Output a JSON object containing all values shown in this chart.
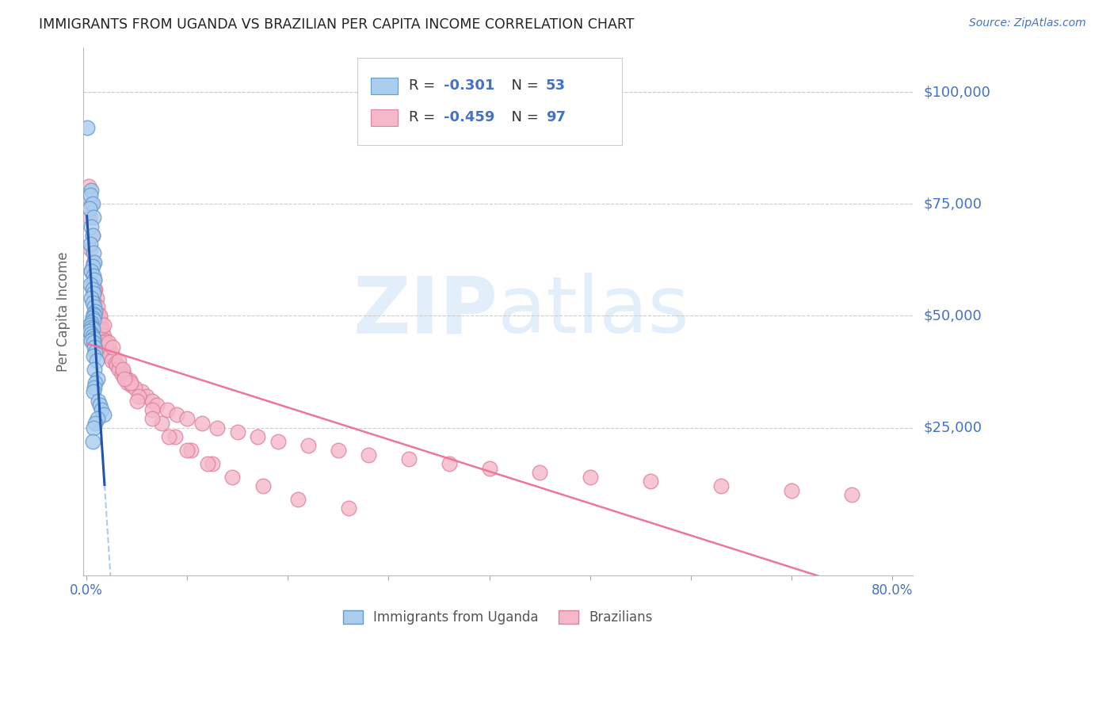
{
  "title": "IMMIGRANTS FROM UGANDA VS BRAZILIAN PER CAPITA INCOME CORRELATION CHART",
  "source": "Source: ZipAtlas.com",
  "ylabel": "Per Capita Income",
  "ytick_vals": [
    0,
    25000,
    50000,
    75000,
    100000
  ],
  "ytick_right_vals": [
    25000,
    50000,
    75000,
    100000
  ],
  "ytick_right_labels": [
    "$25,000",
    "$50,000",
    "$75,000",
    "$100,000"
  ],
  "xlim": [
    -0.003,
    0.82
  ],
  "ylim": [
    -8000,
    110000
  ],
  "watermark_zip": "ZIP",
  "watermark_atlas": "atlas",
  "legend_label1": "Immigrants from Uganda",
  "legend_label2": "Brazilians",
  "R1": "-0.301",
  "N1": "53",
  "R2": "-0.459",
  "N2": "97",
  "uganda_color": "#A8CDEF",
  "brazil_color": "#F5B8C8",
  "uganda_edge_color": "#6699CC",
  "brazil_edge_color": "#E080A0",
  "trend_uganda_color": "#2255AA",
  "trend_brazil_color": "#EE7799",
  "trend_dashed_color": "#AACCEE",
  "text_dark": "#333333",
  "text_blue": "#4472C4",
  "grid_color": "#CCCCCC",
  "uganda_scatter_x": [
    0.001,
    0.005,
    0.004,
    0.006,
    0.003,
    0.007,
    0.005,
    0.006,
    0.004,
    0.007,
    0.008,
    0.006,
    0.005,
    0.007,
    0.008,
    0.004,
    0.006,
    0.007,
    0.005,
    0.006,
    0.008,
    0.009,
    0.007,
    0.008,
    0.006,
    0.007,
    0.005,
    0.004,
    0.005,
    0.006,
    0.003,
    0.005,
    0.006,
    0.007,
    0.005,
    0.007,
    0.008,
    0.009,
    0.007,
    0.01,
    0.008,
    0.011,
    0.009,
    0.008,
    0.007,
    0.012,
    0.013,
    0.015,
    0.017,
    0.011,
    0.009,
    0.007,
    0.006
  ],
  "uganda_scatter_y": [
    92000,
    78000,
    77000,
    75000,
    74000,
    72000,
    70000,
    68000,
    66000,
    64000,
    62000,
    61000,
    60000,
    59000,
    58000,
    57000,
    56000,
    55000,
    54000,
    53000,
    52000,
    51000,
    50500,
    50000,
    49500,
    49000,
    48500,
    48000,
    47500,
    47000,
    46500,
    46000,
    45500,
    45000,
    44500,
    44000,
    43000,
    42000,
    41000,
    40000,
    38000,
    36000,
    35000,
    34000,
    33000,
    31000,
    30000,
    29000,
    28000,
    27000,
    26000,
    25000,
    22000
  ],
  "brazil_scatter_x": [
    0.002,
    0.005,
    0.003,
    0.006,
    0.004,
    0.007,
    0.005,
    0.008,
    0.006,
    0.009,
    0.007,
    0.01,
    0.008,
    0.011,
    0.009,
    0.012,
    0.01,
    0.013,
    0.011,
    0.014,
    0.012,
    0.015,
    0.013,
    0.016,
    0.014,
    0.017,
    0.015,
    0.019,
    0.017,
    0.021,
    0.019,
    0.023,
    0.021,
    0.025,
    0.023,
    0.027,
    0.025,
    0.029,
    0.03,
    0.033,
    0.032,
    0.036,
    0.035,
    0.038,
    0.04,
    0.043,
    0.041,
    0.045,
    0.055,
    0.06,
    0.065,
    0.07,
    0.08,
    0.09,
    0.1,
    0.115,
    0.13,
    0.15,
    0.17,
    0.19,
    0.22,
    0.25,
    0.28,
    0.32,
    0.36,
    0.4,
    0.45,
    0.5,
    0.56,
    0.63,
    0.7,
    0.76,
    0.048,
    0.032,
    0.022,
    0.013,
    0.036,
    0.044,
    0.052,
    0.065,
    0.075,
    0.088,
    0.104,
    0.125,
    0.008,
    0.017,
    0.026,
    0.038,
    0.05,
    0.065,
    0.082,
    0.1,
    0.12,
    0.145,
    0.175,
    0.21,
    0.26
  ],
  "brazil_scatter_y": [
    79000,
    75000,
    72000,
    68000,
    65000,
    62000,
    60000,
    58000,
    57000,
    56000,
    55000,
    54000,
    53000,
    52000,
    51000,
    50500,
    50000,
    49500,
    49000,
    48500,
    48000,
    47500,
    47000,
    46500,
    46000,
    45500,
    45000,
    44500,
    44000,
    43500,
    43000,
    42500,
    42000,
    41500,
    41000,
    40500,
    40000,
    39500,
    39000,
    38500,
    38000,
    37500,
    37000,
    36500,
    36000,
    35500,
    35000,
    34500,
    33000,
    32000,
    31000,
    30000,
    29000,
    28000,
    27000,
    26000,
    25000,
    24000,
    23000,
    22000,
    21000,
    20000,
    19000,
    18000,
    17000,
    16000,
    15000,
    14000,
    13000,
    12000,
    11000,
    10000,
    34000,
    40000,
    44000,
    50000,
    38000,
    35000,
    32000,
    29000,
    26000,
    23000,
    20000,
    17000,
    56000,
    48000,
    43000,
    36000,
    31000,
    27000,
    23000,
    20000,
    17000,
    14000,
    12000,
    9000,
    7000
  ]
}
